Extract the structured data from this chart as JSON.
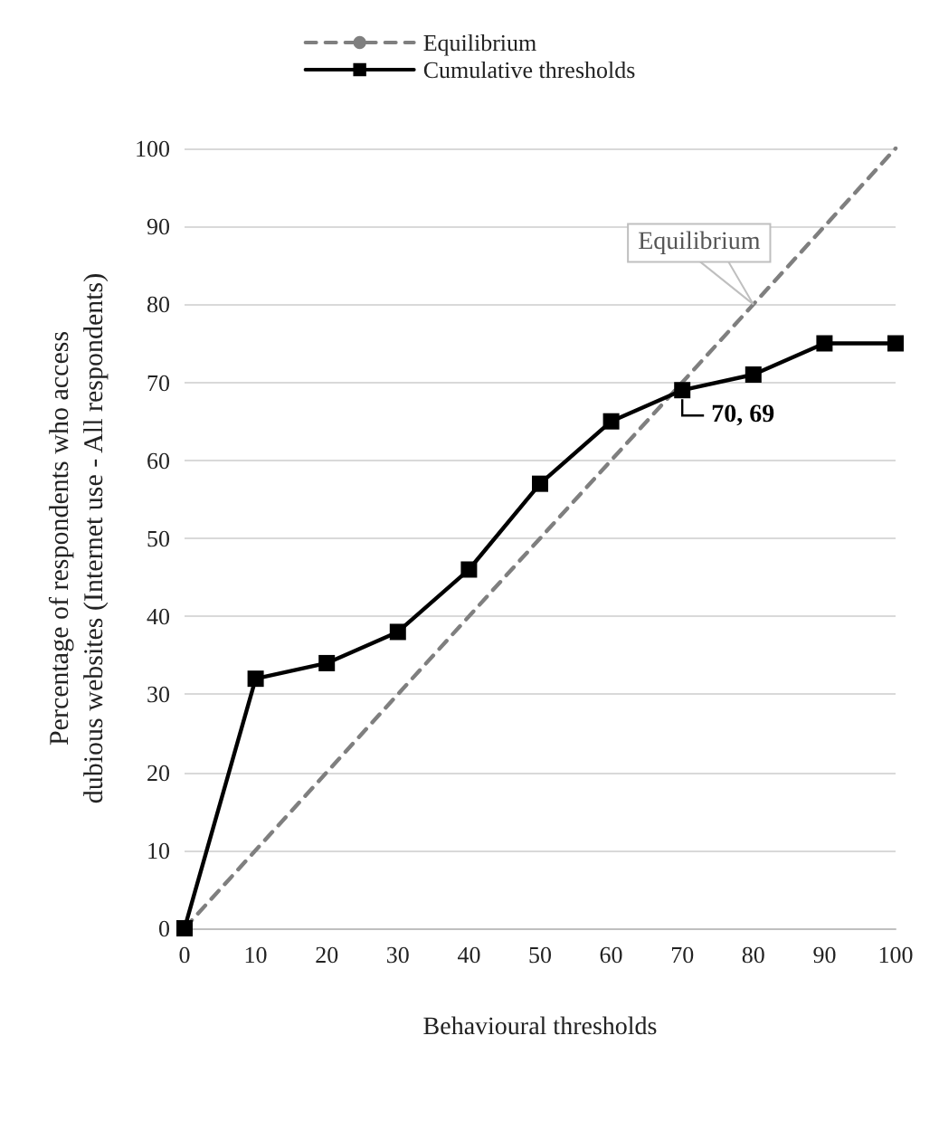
{
  "chart_data": {
    "type": "line",
    "xlabel": "Behavioural thresholds",
    "ylabel": "Percentage of respondents who access\ndubious websites (Internet use - All respondents)",
    "xlim": [
      0,
      100
    ],
    "xticks": [
      0,
      10,
      20,
      30,
      40,
      50,
      60,
      70,
      80,
      90,
      100
    ],
    "ylim": [
      0,
      100
    ],
    "yticks": [
      0,
      10,
      20,
      30,
      40,
      50,
      60,
      70,
      80,
      90,
      100
    ],
    "grid": "y",
    "legend": "top",
    "series": [
      {
        "name": "Equilibrium",
        "color": "#7f7f7f",
        "line_style": "dashed",
        "marker": "none",
        "x": [
          0,
          100
        ],
        "values": [
          0,
          100
        ]
      },
      {
        "name": "Cumulative thresholds",
        "color": "#000000",
        "line_style": "solid",
        "marker": "square",
        "x": [
          0,
          10,
          20,
          30,
          40,
          50,
          60,
          70,
          80,
          90,
          100
        ],
        "values": [
          0,
          32,
          34,
          38,
          46,
          57,
          65,
          69,
          71,
          75,
          75
        ]
      }
    ],
    "annotations": [
      {
        "text": "Equilibrium",
        "x": 80,
        "y": 80
      },
      {
        "text": "70, 69",
        "x": 70,
        "y": 69
      }
    ]
  }
}
